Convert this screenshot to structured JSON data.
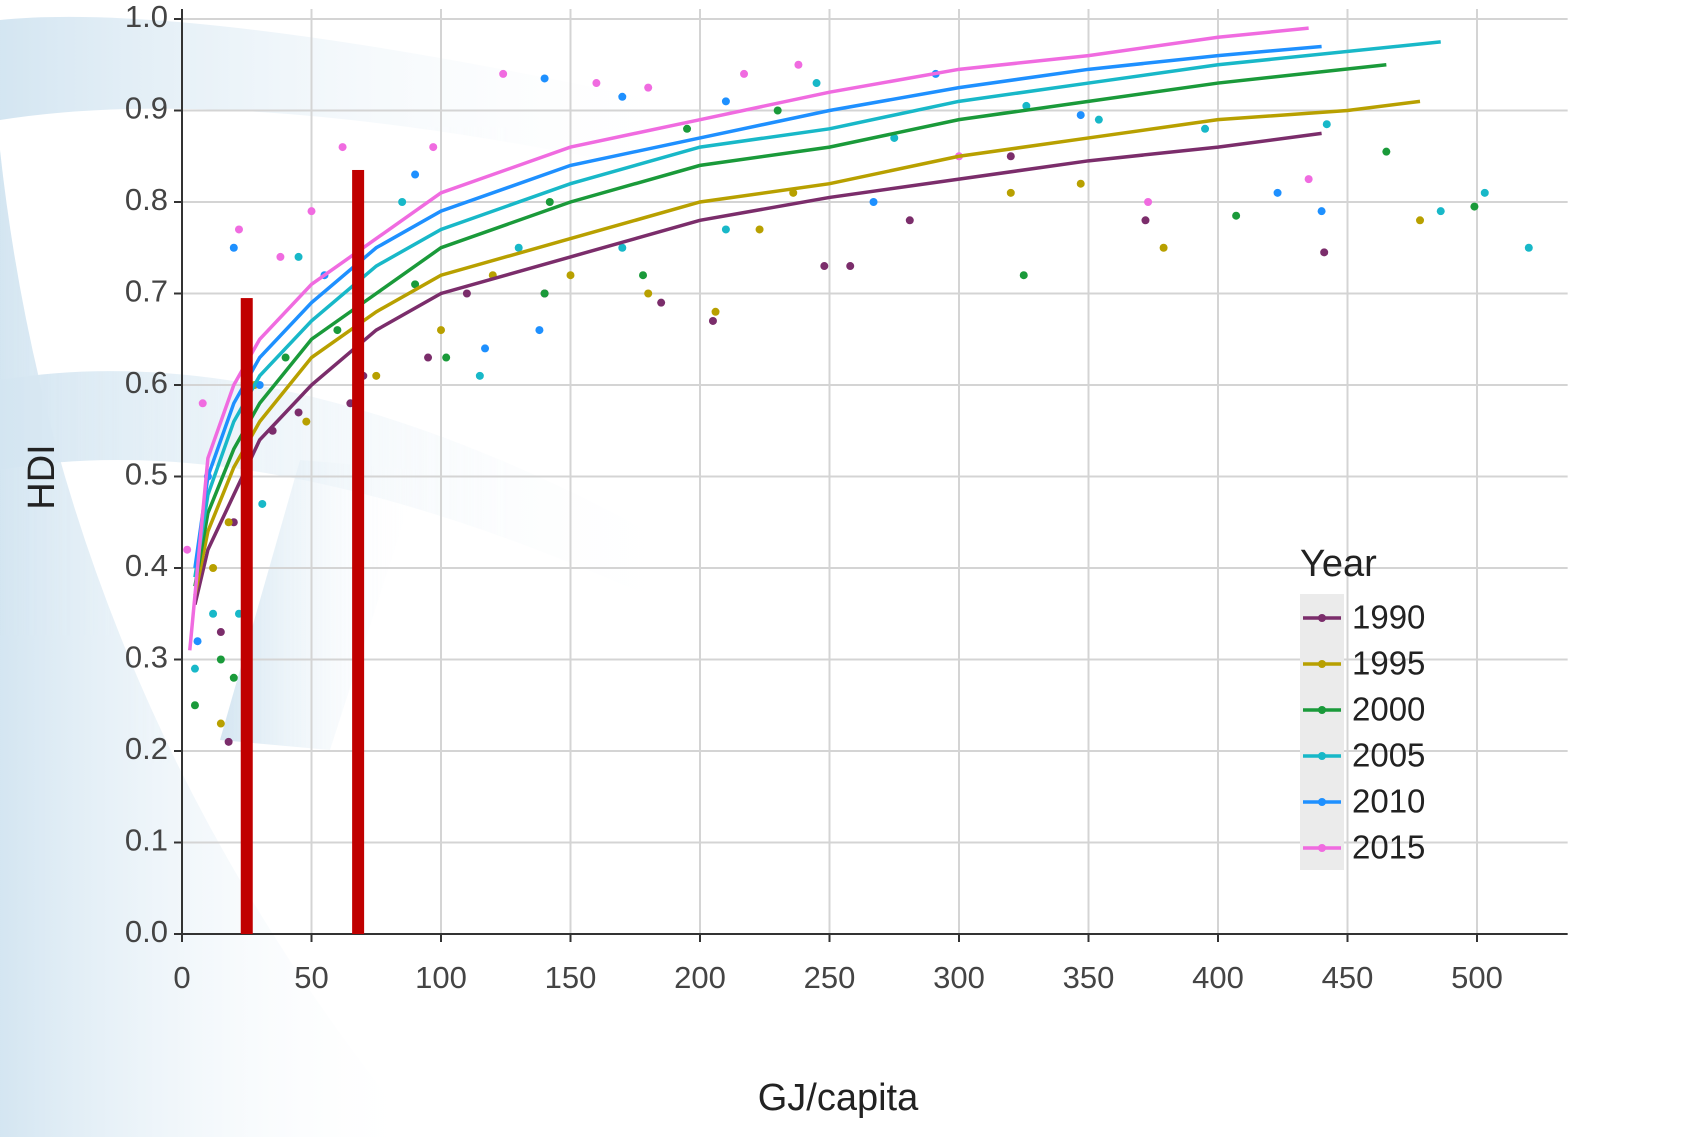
{
  "chart_data": {
    "type": "scatter",
    "x_label": "GJ/capita",
    "y_label": "HDI",
    "legend_title": "Year",
    "xlim": [
      0,
      535
    ],
    "ylim": [
      0,
      1
    ],
    "xticks": [
      0,
      50,
      100,
      150,
      200,
      250,
      300,
      350,
      400,
      450,
      500
    ],
    "yticks": [
      {
        "value": 0,
        "label": "0.0"
      },
      0.1,
      0.2,
      0.3,
      0.4,
      0.5,
      0.6,
      0.7,
      0.8,
      0.9,
      {
        "value": 1,
        "label": "1.0"
      }
    ],
    "grid": true,
    "series": [
      {
        "name": "1990",
        "color": "#7b2d6b",
        "x": [
          18,
          15,
          20,
          35,
          45,
          65,
          70,
          95,
          110,
          140,
          185,
          205,
          248,
          258,
          281,
          320,
          372,
          441
        ],
        "values": [
          0.21,
          0.33,
          0.45,
          0.55,
          0.57,
          0.58,
          0.61,
          0.63,
          0.7,
          0.7,
          0.69,
          0.67,
          0.73,
          0.73,
          0.78,
          0.85,
          0.78,
          0.745
        ],
        "fit_x": [
          5,
          10,
          20,
          30,
          50,
          75,
          100,
          150,
          200,
          250,
          300,
          350,
          400,
          440
        ],
        "fit_values": [
          0.36,
          0.42,
          0.48,
          0.54,
          0.6,
          0.66,
          0.7,
          0.74,
          0.78,
          0.805,
          0.825,
          0.845,
          0.86,
          0.875
        ]
      },
      {
        "name": "1995",
        "color": "#b8a000",
        "x": [
          15,
          12,
          18,
          28,
          48,
          75,
          100,
          120,
          150,
          180,
          206,
          223,
          236,
          320,
          347,
          379,
          478
        ],
        "values": [
          0.23,
          0.4,
          0.45,
          0.6,
          0.56,
          0.61,
          0.66,
          0.72,
          0.72,
          0.7,
          0.68,
          0.77,
          0.81,
          0.81,
          0.82,
          0.75,
          0.78
        ],
        "fit_x": [
          5,
          10,
          20,
          30,
          50,
          75,
          100,
          150,
          200,
          250,
          300,
          350,
          400,
          450,
          478
        ],
        "fit_values": [
          0.37,
          0.44,
          0.51,
          0.56,
          0.63,
          0.68,
          0.72,
          0.76,
          0.8,
          0.82,
          0.85,
          0.87,
          0.89,
          0.9,
          0.91
        ]
      },
      {
        "name": "2000",
        "color": "#1a9a3a",
        "x": [
          5,
          15,
          20,
          25,
          40,
          60,
          90,
          102,
          140,
          142,
          178,
          195,
          230,
          325,
          407,
          465,
          499
        ],
        "values": [
          0.25,
          0.3,
          0.28,
          0.48,
          0.63,
          0.66,
          0.71,
          0.63,
          0.7,
          0.8,
          0.72,
          0.88,
          0.9,
          0.72,
          0.785,
          0.855,
          0.795
        ],
        "fit_x": [
          5,
          10,
          20,
          30,
          50,
          75,
          100,
          150,
          200,
          250,
          300,
          350,
          400,
          465
        ],
        "fit_values": [
          0.38,
          0.46,
          0.53,
          0.58,
          0.65,
          0.7,
          0.75,
          0.8,
          0.84,
          0.86,
          0.89,
          0.91,
          0.93,
          0.95
        ]
      },
      {
        "name": "2005",
        "color": "#18b8c8",
        "x": [
          5,
          12,
          22,
          31,
          45,
          85,
          115,
          130,
          170,
          210,
          245,
          275,
          326,
          354,
          395,
          442,
          486,
          503,
          520
        ],
        "values": [
          0.29,
          0.35,
          0.35,
          0.47,
          0.74,
          0.8,
          0.61,
          0.75,
          0.75,
          0.77,
          0.93,
          0.87,
          0.905,
          0.89,
          0.88,
          0.885,
          0.79,
          0.81,
          0.75
        ],
        "fit_x": [
          5,
          10,
          20,
          30,
          50,
          75,
          100,
          150,
          200,
          250,
          300,
          350,
          400,
          486
        ],
        "fit_values": [
          0.39,
          0.48,
          0.56,
          0.61,
          0.67,
          0.73,
          0.77,
          0.82,
          0.86,
          0.88,
          0.91,
          0.93,
          0.95,
          0.975
        ]
      },
      {
        "name": "2010",
        "color": "#1e90ff",
        "x": [
          6,
          10,
          20,
          30,
          55,
          90,
          117,
          138,
          140,
          170,
          210,
          267,
          291,
          347,
          423,
          440
        ],
        "values": [
          0.32,
          0.5,
          0.75,
          0.6,
          0.72,
          0.83,
          0.64,
          0.66,
          0.935,
          0.915,
          0.91,
          0.8,
          0.94,
          0.895,
          0.81,
          0.79
        ],
        "fit_x": [
          5,
          10,
          20,
          30,
          50,
          75,
          100,
          150,
          200,
          250,
          300,
          350,
          400,
          440
        ],
        "fit_values": [
          0.4,
          0.5,
          0.58,
          0.63,
          0.69,
          0.75,
          0.79,
          0.84,
          0.87,
          0.9,
          0.925,
          0.945,
          0.96,
          0.97
        ]
      },
      {
        "name": "2015",
        "color": "#f06be0",
        "x": [
          2,
          8,
          22,
          38,
          50,
          62,
          97,
          124,
          160,
          180,
          217,
          238,
          300,
          373,
          435
        ],
        "values": [
          0.42,
          0.58,
          0.77,
          0.74,
          0.79,
          0.86,
          0.86,
          0.94,
          0.93,
          0.925,
          0.94,
          0.95,
          0.85,
          0.8,
          0.825
        ],
        "fit_x": [
          3,
          10,
          20,
          30,
          50,
          75,
          100,
          150,
          200,
          250,
          300,
          350,
          400,
          435
        ],
        "fit_values": [
          0.31,
          0.52,
          0.6,
          0.65,
          0.71,
          0.76,
          0.81,
          0.86,
          0.89,
          0.92,
          0.945,
          0.96,
          0.98,
          0.99
        ]
      }
    ],
    "bars": {
      "color": "#c00000",
      "x": [
        25,
        68
      ],
      "values": [
        0.695,
        0.835
      ]
    }
  }
}
